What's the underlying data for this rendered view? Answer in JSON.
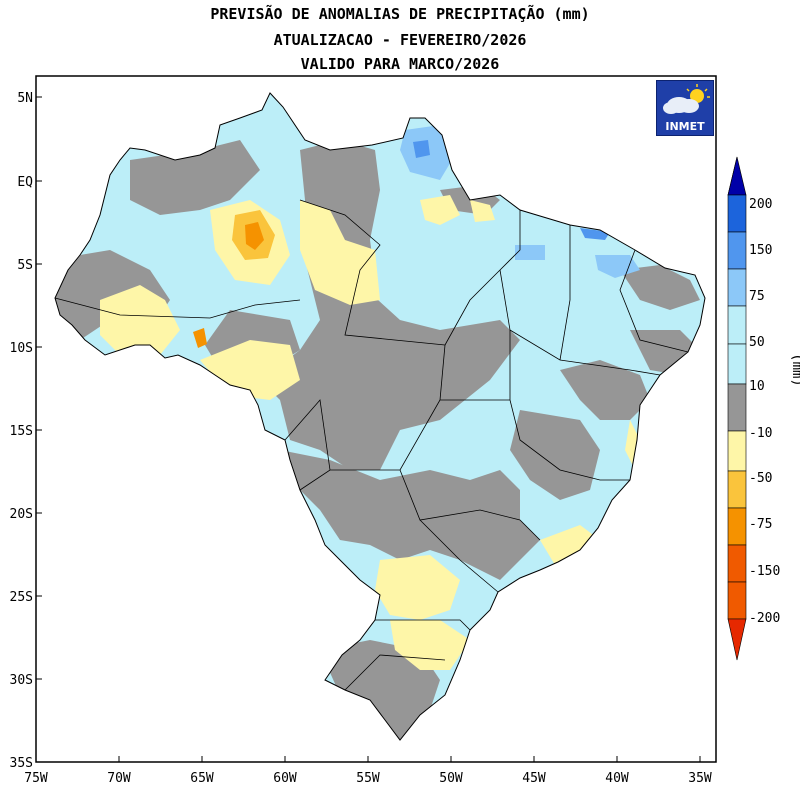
{
  "title": {
    "line1": "PREVISÃO DE ANOMALIAS DE PRECIPITAÇÃO (mm)",
    "line2": "ATUALIZACAO - FEVEREIRO/2026",
    "line3": "VALIDO PARA MARCO/2026"
  },
  "logo": {
    "name": "inmet-cloud-sun-icon",
    "label": "INMET"
  },
  "axes": {
    "lat_labels": [
      "5N",
      "EQ",
      "5S",
      "10S",
      "15S",
      "20S",
      "25S",
      "30S",
      "35S"
    ],
    "lon_labels": [
      "75W",
      "70W",
      "65W",
      "60W",
      "55W",
      "50W",
      "45W",
      "40W",
      "35W"
    ],
    "lat_range": [
      -35,
      5
    ],
    "lon_range": [
      -75,
      -35
    ]
  },
  "colorbar": {
    "unit_label": "(mm)",
    "ticks": [
      "200",
      "150",
      "75",
      "50",
      "10",
      "-10",
      "-50",
      "-75",
      "-150",
      "-200"
    ],
    "colors": [
      "#0000a8",
      "#1c64dc",
      "#5096ee",
      "#8cc8f8",
      "#bceef8",
      "#969696",
      "#fef6a8",
      "#fac43c",
      "#f59200",
      "#f05a00",
      "#e62800"
    ]
  },
  "chart_data": {
    "type": "heatmap",
    "title": "PREVISÃO DE ANOMALIAS DE PRECIPITAÇÃO (mm)",
    "subtitle": [
      "ATUALIZACAO - FEVEREIRO/2026",
      "VALIDO PARA MARCO/2026"
    ],
    "colorbar_levels_mm": [
      -200,
      -150,
      -75,
      -50,
      -10,
      10,
      50,
      75,
      150,
      200
    ],
    "region": "Brasil",
    "lon_range": [
      -75,
      -35
    ],
    "lat_range": [
      -35,
      5
    ]
  }
}
